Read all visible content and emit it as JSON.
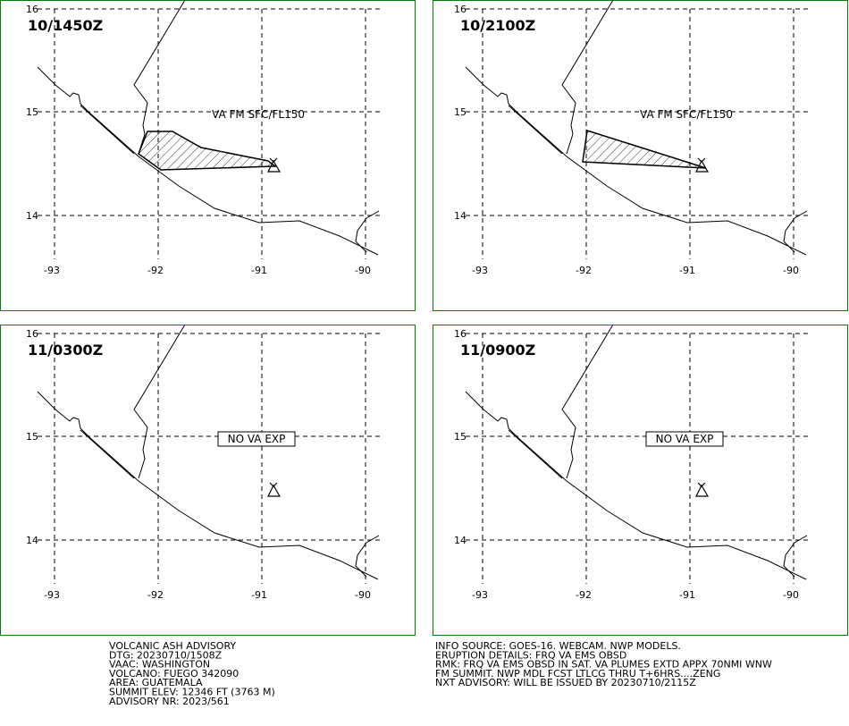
{
  "panels": [
    {
      "title": "10/1450Z",
      "label": "VA FM SFC/FL150"
    },
    {
      "title": "10/2100Z",
      "label": "VA FM SFC/FL150"
    },
    {
      "title": "11/0300Z",
      "label": "NO VA EXP"
    },
    {
      "title": "11/0900Z",
      "label": "NO VA EXP"
    }
  ],
  "grid": {
    "lat_labels": [
      "16",
      "15",
      "14"
    ],
    "lon_labels": [
      "-93",
      "-92",
      "-91",
      "-90"
    ]
  },
  "advisory": {
    "left": [
      "VOLCANIC ASH ADVISORY",
      "DTG: 20230710/1508Z",
      "VAAC: WASHINGTON",
      "VOLCANO: FUEGO 342090",
      "AREA: GUATEMALA",
      "SUMMIT ELEV: 12346 FT (3763 M)",
      "ADVISORY NR: 2023/561"
    ],
    "right": [
      "INFO SOURCE: GOES-16. WEBCAM. NWP MODELS.",
      "ERUPTION DETAILS: FRQ VA EMS OBSD",
      "RMK: FRQ VA EMS OBSD IN SAT. VA PLUMES EXTD APPX 70NMI WNW",
      "FM SUMMIT. NWP MDL FCST LTLCG THRU T+6HRS....ZENG",
      "NXT ADVISORY: WILL BE ISSUED BY 20230710/2115Z"
    ]
  }
}
